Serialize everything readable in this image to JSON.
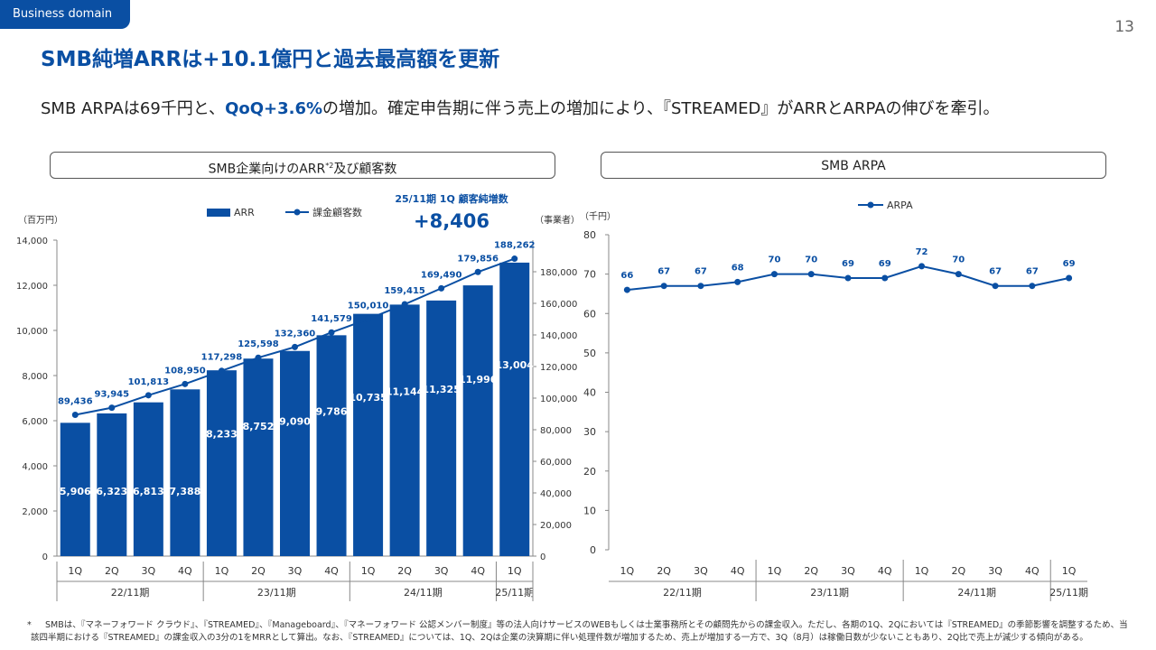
{
  "header": {
    "tag": "Business domain",
    "page_number": "13",
    "title": "SMB純増ARRは+10.1億円と過去最高額を更新",
    "subtitle_pre": "SMB ARPAは69千円と、",
    "subtitle_highlight": "QoQ+3.6%",
    "subtitle_post": "の増加。確定申告期に伴う売上の増加により、『STREAMED』がARRとARPAの伸びを牽引。"
  },
  "colors": {
    "brand": "#0a4fa3",
    "text": "#333333",
    "axis": "#888888"
  },
  "chart_data": [
    {
      "type": "bar",
      "panel_title": "SMB企業向けのARR",
      "panel_title_sup": "*2",
      "panel_title_suffix": "及び顧客数",
      "categories": [
        "1Q",
        "2Q",
        "3Q",
        "4Q",
        "1Q",
        "2Q",
        "3Q",
        "4Q",
        "1Q",
        "2Q",
        "3Q",
        "4Q",
        "1Q"
      ],
      "periods": [
        {
          "label": "22/11期",
          "start": 0,
          "end": 3
        },
        {
          "label": "23/11期",
          "start": 4,
          "end": 7
        },
        {
          "label": "24/11期",
          "start": 8,
          "end": 11
        },
        {
          "label": "25/11期",
          "start": 12,
          "end": 12
        }
      ],
      "series": [
        {
          "name": "ARR",
          "kind": "bar",
          "axis": "left",
          "values": [
            5906,
            6323,
            6813,
            7388,
            8233,
            8752,
            9090,
            9786,
            10735,
            11144,
            11325,
            11996,
            13004
          ],
          "labels": [
            "5,906",
            "6,323",
            "6,813",
            "7,388",
            "8,233",
            "8,752",
            "9,090",
            "9,786",
            "10,735",
            "11,144",
            "11,325",
            "11,996",
            "13,004"
          ]
        },
        {
          "name": "課金顧客数",
          "kind": "line",
          "axis": "right",
          "values": [
            89436,
            93945,
            101813,
            108950,
            117298,
            125598,
            132360,
            141579,
            150010,
            159415,
            169490,
            179856,
            188262
          ],
          "labels": [
            "89,436",
            "93,945",
            "101,813",
            "108,950",
            "117,298",
            "125,598",
            "132,360",
            "141,579",
            "150,010",
            "159,415",
            "169,490",
            "179,856",
            "188,262"
          ]
        }
      ],
      "y_left": {
        "label": "（百万円）",
        "range": [
          0,
          14000
        ],
        "ticks": [
          "0",
          "2,000",
          "4,000",
          "6,000",
          "8,000",
          "10,000",
          "12,000",
          "14,000"
        ]
      },
      "y_right": {
        "label": "（事業者）",
        "range": [
          0,
          200000
        ],
        "ticks": [
          "0",
          "20,000",
          "40,000",
          "60,000",
          "80,000",
          "100,000",
          "120,000",
          "140,000",
          "160,000",
          "180,000"
        ]
      },
      "annotation": {
        "heading": "25/11期 1Q 顧客純増数",
        "value": "+8,406"
      }
    },
    {
      "type": "line",
      "panel_title": "SMB ARPA",
      "categories": [
        "1Q",
        "2Q",
        "3Q",
        "4Q",
        "1Q",
        "2Q",
        "3Q",
        "4Q",
        "1Q",
        "2Q",
        "3Q",
        "4Q",
        "1Q"
      ],
      "periods": [
        {
          "label": "22/11期",
          "start": 0,
          "end": 3
        },
        {
          "label": "23/11期",
          "start": 4,
          "end": 7
        },
        {
          "label": "24/11期",
          "start": 8,
          "end": 11
        },
        {
          "label": "25/11期",
          "start": 12,
          "end": 12
        }
      ],
      "series": [
        {
          "name": "ARPA",
          "values": [
            66,
            67,
            67,
            68,
            70,
            70,
            69,
            69,
            72,
            70,
            67,
            67,
            69
          ],
          "labels": [
            "66",
            "67",
            "67",
            "68",
            "70",
            "70",
            "69",
            "69",
            "72",
            "70",
            "67",
            "67",
            "69"
          ]
        }
      ],
      "y": {
        "label": "（千円）",
        "range": [
          0,
          80
        ],
        "ticks": [
          "0",
          "10",
          "20",
          "30",
          "40",
          "50",
          "60",
          "70",
          "80"
        ]
      }
    }
  ],
  "footnote": {
    "marker": "*",
    "text": "SMBは、『マネーフォワード クラウド』、『STREAMED』、『Manageboard』、『マネーフォワード 公認メンバー制度』等の法人向けサービスのWEBもしくは士業事務所とその顧問先からの課金収入。ただし、各期の1Q、2Qにおいては『STREAMED』の季節影響を調整するため、当該四半期における『STREAMED』の課金収入の3分の1をMRRとして算出。なお、『STREAMED』については、1Q、2Qは企業の決算期に伴い処理件数が増加するため、売上が増加する一方で、3Q（8月）は稼働日数が少ないこともあり、2Q比で売上が減少する傾向がある。"
  }
}
